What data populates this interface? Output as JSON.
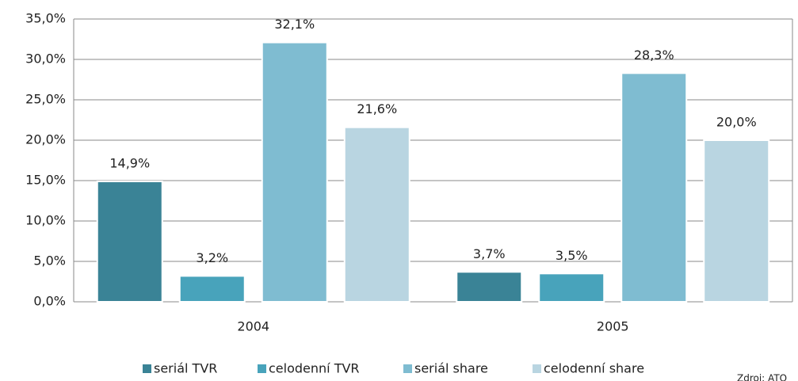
{
  "chart_data": {
    "type": "bar",
    "categories": [
      "2004",
      "2005"
    ],
    "series": [
      {
        "name": "seriál TVR",
        "color": "#3a8396",
        "values": [
          14.9,
          3.7
        ],
        "value_labels": [
          "14,9%",
          "3,7%"
        ]
      },
      {
        "name": "celodenní TVR",
        "color": "#48a3bb",
        "values": [
          3.2,
          3.5
        ],
        "value_labels": [
          "3,2%",
          "3,5%"
        ]
      },
      {
        "name": "seriál share",
        "color": "#7fbcd1",
        "values": [
          32.1,
          28.3
        ],
        "value_labels": [
          "32,1%",
          "28,3%"
        ]
      },
      {
        "name": "celodenní share",
        "color": "#b9d5e1",
        "values": [
          21.6,
          20.0
        ],
        "value_labels": [
          "21,6%",
          "20,0%"
        ]
      }
    ],
    "ylim": [
      0,
      35
    ],
    "yticks": [
      {
        "value": 0,
        "label": "0,0%"
      },
      {
        "value": 5,
        "label": "5,0%"
      },
      {
        "value": 10,
        "label": "10,0%"
      },
      {
        "value": 15,
        "label": "15,0%"
      },
      {
        "value": 20,
        "label": "20,0%"
      },
      {
        "value": 25,
        "label": "25,0%"
      },
      {
        "value": 30,
        "label": "30,0%"
      },
      {
        "value": 35,
        "label": "35,0%"
      }
    ],
    "grid": true,
    "legend": "bottom",
    "annotation": "Zdroj: ATO"
  }
}
